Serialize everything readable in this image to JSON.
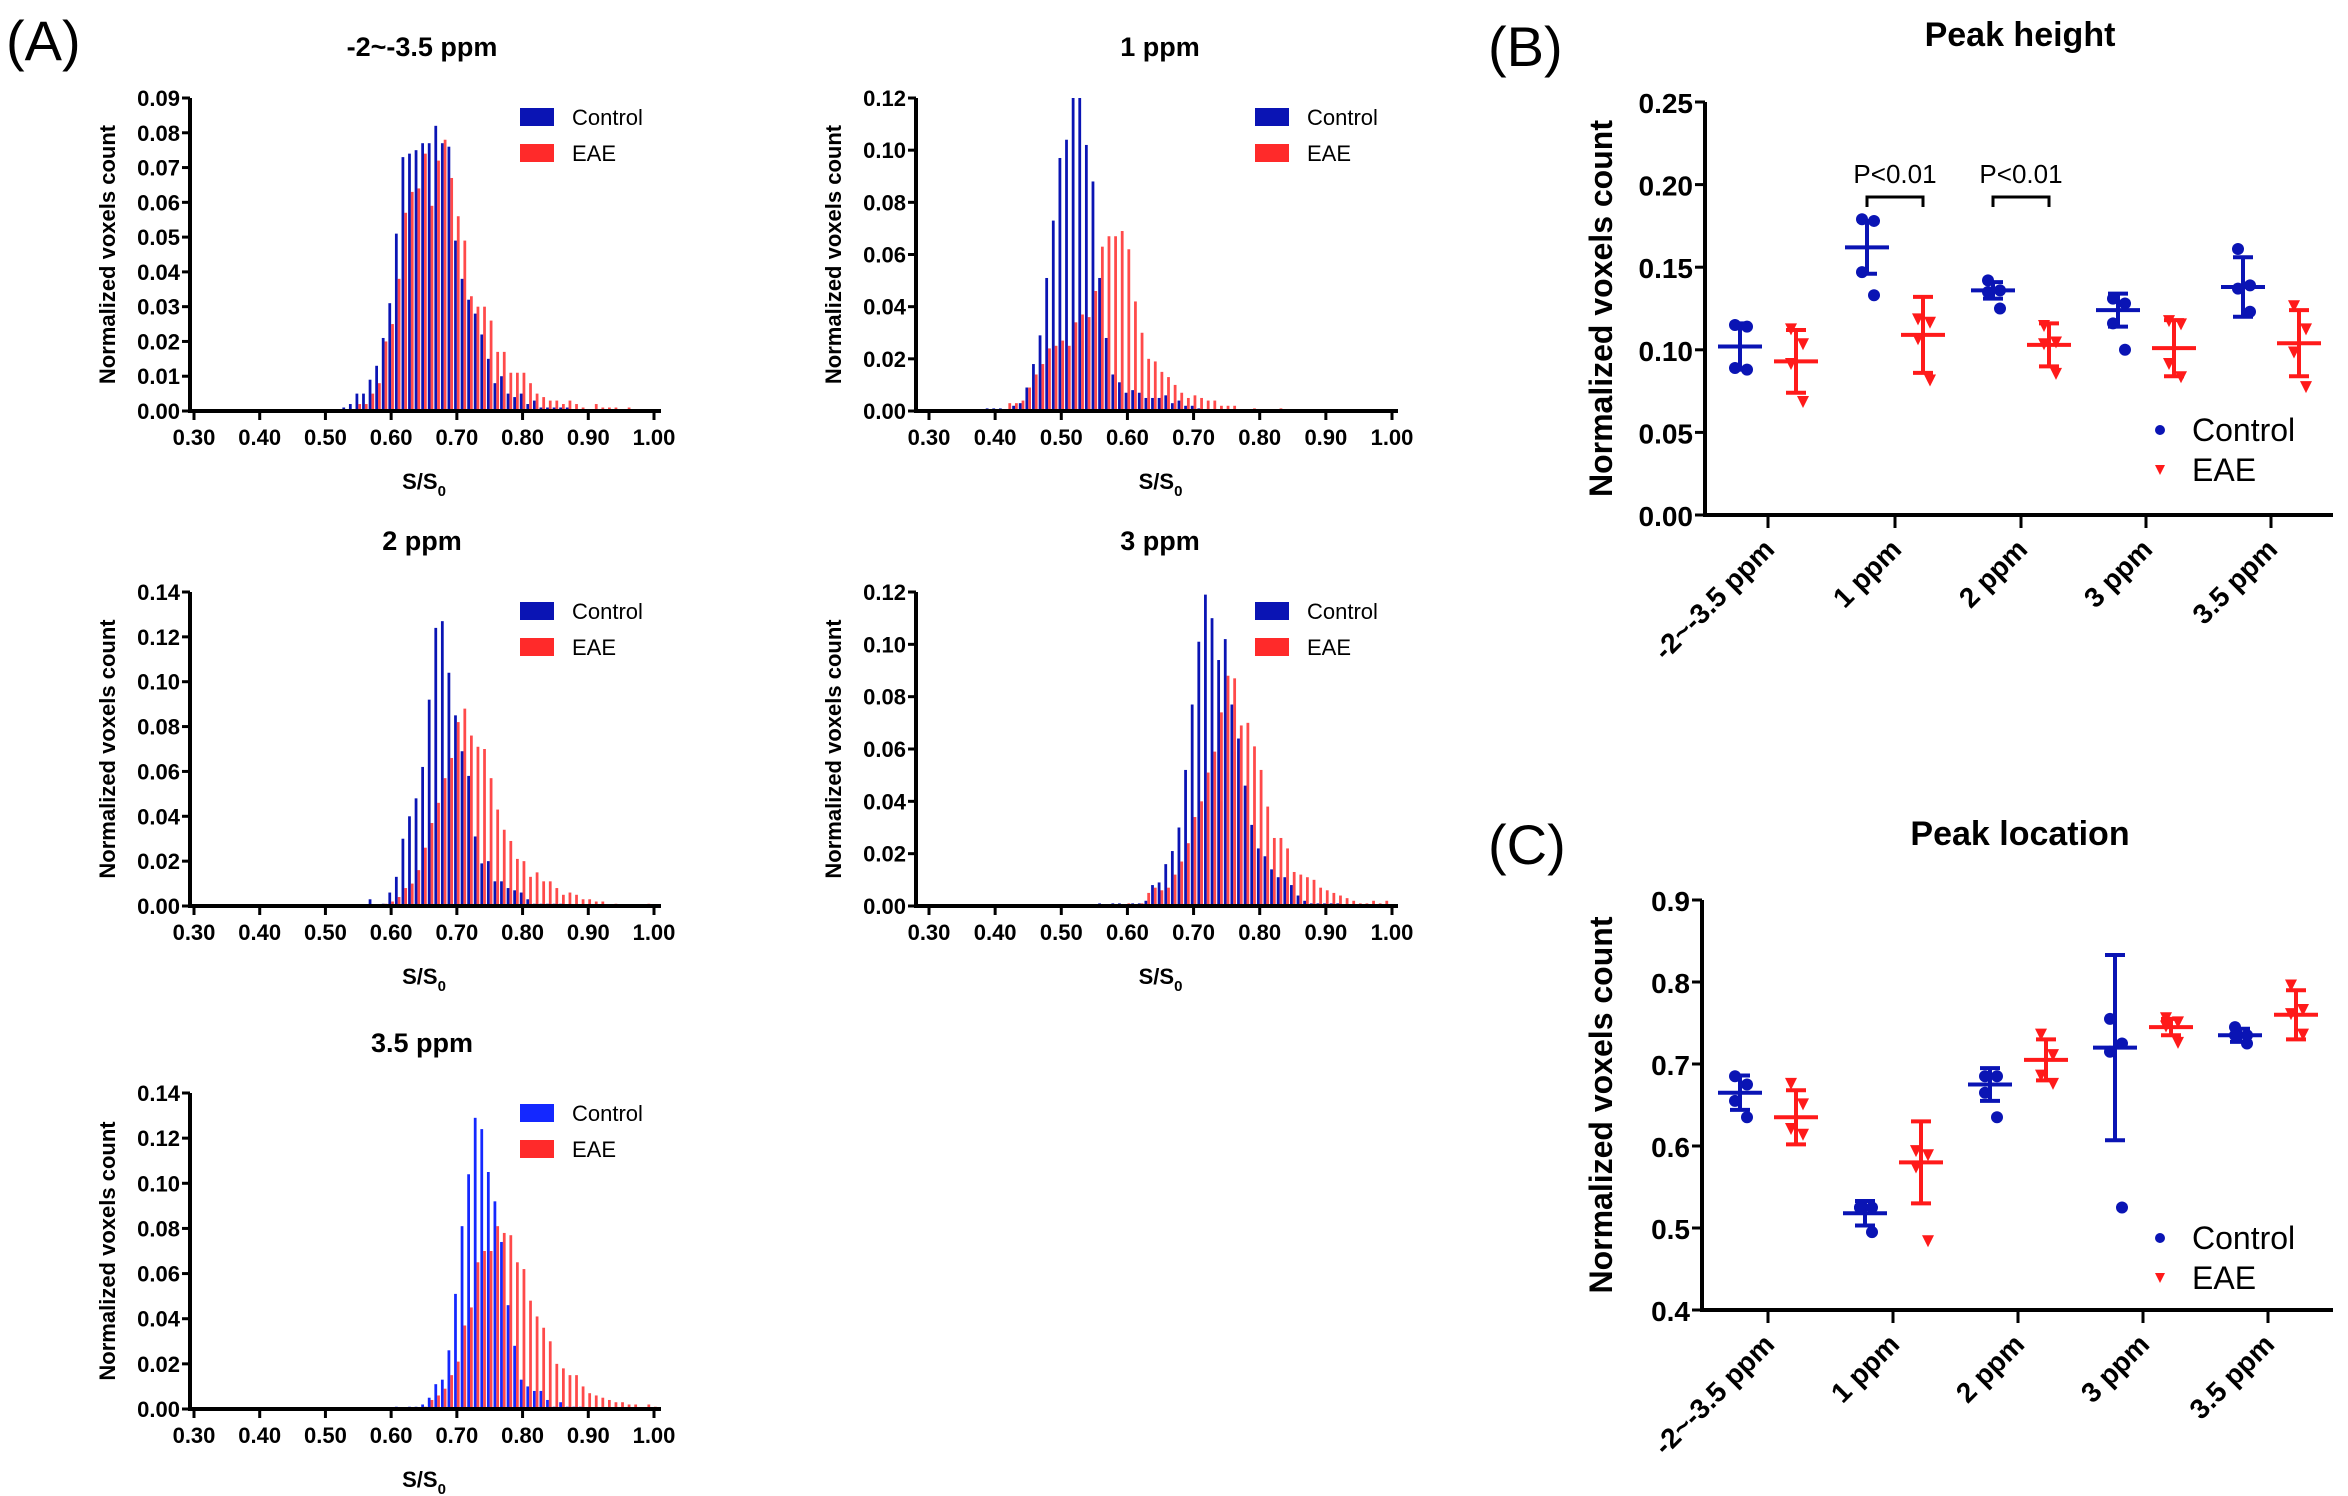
{
  "panel_labels": {
    "A": "(A)",
    "B": "(B)",
    "C": "(C)"
  },
  "colors": {
    "control": "#0a14b4",
    "control_bright": "#1428ff",
    "eae": "#ff2a2a",
    "eae_marker": "#ff1a1a",
    "axis": "#000000"
  },
  "chart_data": [
    {
      "id": "hist-m2-3.5",
      "type": "bar",
      "title": "-2~-3.5 ppm",
      "xlabel": "S/S0",
      "ylabel": "Normalized voxels count",
      "xlim": [
        0.3,
        1.0
      ],
      "ylim": [
        0,
        0.09
      ],
      "yticks": [
        "0.00",
        "0.01",
        "0.02",
        "0.03",
        "0.04",
        "0.05",
        "0.06",
        "0.07",
        "0.08",
        "0.09"
      ],
      "xticks": [
        "0.30",
        "0.40",
        "0.50",
        "0.60",
        "0.70",
        "0.80",
        "0.90",
        "1.00"
      ],
      "legend": [
        "Control",
        "EAE"
      ],
      "legend_position": "top-right",
      "bin_start": 0.53,
      "bin_width": 0.01,
      "series": [
        {
          "name": "Control",
          "values": [
            0.001,
            0.002,
            0.005,
            0.005,
            0.009,
            0.013,
            0.021,
            0.031,
            0.051,
            0.073,
            0.074,
            0.075,
            0.077,
            0.077,
            0.082,
            0.077,
            0.076,
            0.049,
            0.038,
            0.032,
            0.028,
            0.022,
            0.015,
            0.008,
            0.01,
            0.005,
            0.004,
            0.005,
            0.002,
            0.003,
            0.001,
            0.001,
            0.001,
            0.001,
            0.001,
            0.0,
            0.0,
            0.0,
            0.0,
            0.0,
            0.0,
            0.0,
            0.0,
            0.0
          ]
        },
        {
          "name": "EAE",
          "values": [
            0.0,
            0.0,
            0.002,
            0.002,
            0.005,
            0.008,
            0.02,
            0.025,
            0.038,
            0.057,
            0.063,
            0.064,
            0.074,
            0.059,
            0.072,
            0.078,
            0.067,
            0.056,
            0.049,
            0.033,
            0.03,
            0.03,
            0.026,
            0.017,
            0.017,
            0.011,
            0.011,
            0.011,
            0.008,
            0.005,
            0.004,
            0.003,
            0.003,
            0.002,
            0.003,
            0.002,
            0.001,
            0.0,
            0.002,
            0.001,
            0.001,
            0.001,
            0.0,
            0.001
          ]
        }
      ]
    },
    {
      "id": "hist-1",
      "type": "bar",
      "title": "1 ppm",
      "xlabel": "S/S0",
      "ylabel": "Normalized voxels count",
      "xlim": [
        0.3,
        1.0
      ],
      "ylim": [
        0,
        0.12
      ],
      "yticks": [
        "0.00",
        "0.02",
        "0.04",
        "0.06",
        "0.08",
        "0.10",
        "0.12"
      ],
      "xticks": [
        "0.30",
        "0.40",
        "0.50",
        "0.60",
        "0.70",
        "0.80",
        "0.90",
        "1.00"
      ],
      "legend": [
        "Control",
        "EAE"
      ],
      "legend_position": "top-right",
      "bin_start": 0.39,
      "bin_width": 0.01,
      "series": [
        {
          "name": "Control",
          "values": [
            0.001,
            0.001,
            0.001,
            0.0,
            0.002,
            0.003,
            0.009,
            0.018,
            0.029,
            0.051,
            0.073,
            0.097,
            0.104,
            0.12,
            0.12,
            0.102,
            0.088,
            0.051,
            0.028,
            0.014,
            0.011,
            0.007,
            0.008,
            0.007,
            0.005,
            0.005,
            0.005,
            0.006,
            0.003,
            0.004,
            0.002,
            0.002,
            0.001,
            0.0,
            0.0,
            0.0,
            0.0,
            0.0,
            0.0,
            0.0,
            0.0,
            0.0,
            0.0,
            0.0,
            0.0
          ]
        },
        {
          "name": "EAE",
          "values": [
            0.0,
            0.0,
            0.0,
            0.003,
            0.003,
            0.004,
            0.009,
            0.014,
            0.018,
            0.024,
            0.025,
            0.027,
            0.025,
            0.034,
            0.037,
            0.036,
            0.046,
            0.063,
            0.067,
            0.067,
            0.069,
            0.062,
            0.042,
            0.03,
            0.02,
            0.019,
            0.015,
            0.013,
            0.01,
            0.007,
            0.005,
            0.006,
            0.005,
            0.004,
            0.004,
            0.002,
            0.002,
            0.002,
            0.0,
            0.0,
            0.001,
            0.0,
            0.0,
            0.0,
            0.001
          ]
        }
      ]
    },
    {
      "id": "hist-2",
      "type": "bar",
      "title": "2 ppm",
      "xlabel": "S/S0",
      "ylabel": "Normalized voxels count",
      "xlim": [
        0.3,
        1.0
      ],
      "ylim": [
        0,
        0.14
      ],
      "yticks": [
        "0.00",
        "0.02",
        "0.04",
        "0.06",
        "0.08",
        "0.10",
        "0.12",
        "0.14"
      ],
      "xticks": [
        "0.30",
        "0.40",
        "0.50",
        "0.60",
        "0.70",
        "0.80",
        "0.90",
        "1.00"
      ],
      "legend": [
        "Control",
        "EAE"
      ],
      "legend_position": "top-right",
      "bin_start": 0.57,
      "bin_width": 0.01,
      "series": [
        {
          "name": "Control",
          "values": [
            0.003,
            0.0,
            0.001,
            0.006,
            0.013,
            0.03,
            0.04,
            0.048,
            0.062,
            0.092,
            0.124,
            0.127,
            0.104,
            0.085,
            0.069,
            0.058,
            0.031,
            0.019,
            0.02,
            0.011,
            0.011,
            0.008,
            0.007,
            0.006,
            0.003,
            0.001,
            0.001,
            0.001,
            0.001,
            0.001,
            0.0,
            0.0,
            0.0,
            0.0,
            0.0,
            0.0,
            0.0,
            0.0,
            0.0,
            0.0,
            0.0,
            0.0,
            0.0
          ]
        },
        {
          "name": "EAE",
          "values": [
            0.0,
            0.0,
            0.001,
            0.002,
            0.004,
            0.008,
            0.01,
            0.016,
            0.026,
            0.037,
            0.046,
            0.057,
            0.066,
            0.082,
            0.088,
            0.076,
            0.071,
            0.07,
            0.057,
            0.043,
            0.034,
            0.029,
            0.021,
            0.02,
            0.013,
            0.015,
            0.011,
            0.011,
            0.008,
            0.005,
            0.006,
            0.005,
            0.003,
            0.003,
            0.002,
            0.002,
            0.0,
            0.001,
            0.0,
            0.0,
            0.0,
            0.0,
            0.001
          ]
        }
      ]
    },
    {
      "id": "hist-3",
      "type": "bar",
      "title": "3 ppm",
      "xlabel": "S/S0",
      "ylabel": "Normalized voxels count",
      "xlim": [
        0.3,
        1.0
      ],
      "ylim": [
        0,
        0.12
      ],
      "yticks": [
        "0.00",
        "0.02",
        "0.04",
        "0.06",
        "0.08",
        "0.10",
        "0.12"
      ],
      "xticks": [
        "0.30",
        "0.40",
        "0.50",
        "0.60",
        "0.70",
        "0.80",
        "0.90",
        "1.00"
      ],
      "legend": [
        "Control",
        "EAE"
      ],
      "legend_position": "top-right",
      "bin_start": 0.56,
      "bin_width": 0.01,
      "series": [
        {
          "name": "Control",
          "values": [
            0.001,
            0.0,
            0.001,
            0.001,
            0.0,
            0.001,
            0.001,
            0.002,
            0.008,
            0.009,
            0.016,
            0.021,
            0.03,
            0.052,
            0.077,
            0.101,
            0.119,
            0.11,
            0.094,
            0.102,
            0.077,
            0.064,
            0.046,
            0.031,
            0.022,
            0.019,
            0.014,
            0.011,
            0.011,
            0.008,
            0.004,
            0.002,
            0.001,
            0.001,
            0.001,
            0.001,
            0.001,
            0.0,
            0.0,
            0.0,
            0.0,
            0.0,
            0.0,
            0.0
          ]
        },
        {
          "name": "EAE",
          "values": [
            0.0,
            0.0,
            0.0,
            0.0,
            0.001,
            0.0,
            0.001,
            0.005,
            0.007,
            0.006,
            0.007,
            0.012,
            0.017,
            0.024,
            0.034,
            0.04,
            0.051,
            0.059,
            0.074,
            0.088,
            0.087,
            0.069,
            0.07,
            0.061,
            0.052,
            0.038,
            0.026,
            0.026,
            0.022,
            0.013,
            0.012,
            0.011,
            0.01,
            0.007,
            0.006,
            0.005,
            0.004,
            0.003,
            0.002,
            0.001,
            0.001,
            0.002,
            0.001,
            0.002
          ]
        }
      ]
    },
    {
      "id": "hist-3.5",
      "type": "bar",
      "title": "3.5 ppm",
      "xlabel": "S/S0",
      "ylabel": "Normalized voxels count",
      "xlim": [
        0.3,
        1.0
      ],
      "ylim": [
        0,
        0.14
      ],
      "yticks": [
        "0.00",
        "0.02",
        "0.04",
        "0.06",
        "0.08",
        "0.10",
        "0.12",
        "0.14"
      ],
      "xticks": [
        "0.30",
        "0.40",
        "0.50",
        "0.60",
        "0.70",
        "0.80",
        "0.90",
        "1.00"
      ],
      "legend": [
        "Control",
        "EAE"
      ],
      "legend_position": "top-right",
      "bin_start": 0.61,
      "bin_width": 0.01,
      "series": [
        {
          "name": "Control",
          "values": [
            0.001,
            0.0,
            0.001,
            0.001,
            0.002,
            0.005,
            0.011,
            0.013,
            0.026,
            0.051,
            0.081,
            0.104,
            0.129,
            0.124,
            0.105,
            0.092,
            0.074,
            0.046,
            0.028,
            0.013,
            0.01,
            0.008,
            0.008,
            0.004,
            0.001,
            0.003,
            0.001,
            0.001,
            0.001,
            0.0,
            0.0,
            0.0,
            0.0,
            0.0,
            0.0,
            0.0,
            0.0,
            0.0,
            0.0,
            0.0
          ]
        },
        {
          "name": "EAE",
          "values": [
            0.0,
            0.0,
            0.0,
            0.0,
            0.001,
            0.004,
            0.006,
            0.009,
            0.015,
            0.021,
            0.037,
            0.045,
            0.065,
            0.07,
            0.07,
            0.081,
            0.078,
            0.077,
            0.065,
            0.062,
            0.048,
            0.041,
            0.036,
            0.03,
            0.02,
            0.018,
            0.015,
            0.015,
            0.01,
            0.007,
            0.006,
            0.005,
            0.004,
            0.003,
            0.003,
            0.002,
            0.002,
            0.0,
            0.002,
            0.001
          ]
        }
      ]
    },
    {
      "id": "peak-height",
      "type": "scatter",
      "title": "Peak height",
      "xlabel": "",
      "ylabel": "Normalized voxels count",
      "categories": [
        "-2~-3.5 ppm",
        "1 ppm",
        "2 ppm",
        "3 ppm",
        "3.5 ppm"
      ],
      "ylim": [
        0,
        0.25
      ],
      "yticks": [
        "0.00",
        "0.05",
        "0.10",
        "0.15",
        "0.20",
        "0.25"
      ],
      "legend": [
        "Control",
        "EAE"
      ],
      "legend_position": "bottom-right",
      "series": [
        {
          "name": "Control",
          "marker": "circle",
          "points": [
            [
              0.115,
              0.114,
              0.089,
              0.088
            ],
            [
              0.179,
              0.178,
              0.147,
              0.133
            ],
            [
              0.142,
              0.136,
              0.135,
              0.125
            ],
            [
              0.131,
              0.128,
              0.116,
              0.1
            ],
            [
              0.161,
              0.139,
              0.137,
              0.123
            ]
          ],
          "mean": [
            0.102,
            0.162,
            0.136,
            0.124,
            0.138
          ],
          "sd": [
            0.014,
            0.016,
            0.005,
            0.01,
            0.018
          ]
        },
        {
          "name": "EAE",
          "marker": "triangle-down",
          "points": [
            [
              0.113,
              0.104,
              0.092,
              0.069
            ],
            [
              0.119,
              0.117,
              0.107,
              0.082
            ],
            [
              0.115,
              0.105,
              0.104,
              0.086
            ],
            [
              0.118,
              0.116,
              0.092,
              0.084
            ],
            [
              0.127,
              0.113,
              0.099,
              0.078
            ]
          ],
          "mean": [
            0.093,
            0.109,
            0.103,
            0.101,
            0.104
          ],
          "sd": [
            0.019,
            0.023,
            0.013,
            0.017,
            0.02
          ]
        }
      ],
      "annotations": [
        {
          "text": "P<0.01",
          "between_category": 1
        },
        {
          "text": "P<0.01",
          "between_category": 2
        }
      ]
    },
    {
      "id": "peak-location",
      "type": "scatter",
      "title": "Peak location",
      "xlabel": "",
      "ylabel": "Normalized voxels count",
      "categories": [
        "-2~-3.5 ppm",
        "1 ppm",
        "2 ppm",
        "3 ppm",
        "3.5 ppm"
      ],
      "ylim": [
        0.4,
        0.9
      ],
      "yticks": [
        "0.4",
        "0.5",
        "0.6",
        "0.7",
        "0.8",
        "0.9"
      ],
      "legend": [
        "Control",
        "EAE"
      ],
      "legend_position": "bottom-right",
      "series": [
        {
          "name": "Control",
          "marker": "circle",
          "points": [
            [
              0.685,
              0.675,
              0.655,
              0.635
            ],
            [
              0.525,
              0.525,
              0.525,
              0.495
            ],
            [
              0.685,
              0.685,
              0.665,
              0.635
            ],
            [
              0.755,
              0.725,
              0.715,
              0.525
            ],
            [
              0.745,
              0.735,
              0.735,
              0.725
            ]
          ],
          "mean": [
            0.665,
            0.518,
            0.675,
            0.72,
            0.735
          ],
          "sd": [
            0.021,
            0.015,
            0.02,
            0.113,
            0.008
          ]
        },
        {
          "name": "EAE",
          "marker": "triangle-down",
          "points": [
            [
              0.677,
              0.652,
              0.622,
              0.615
            ],
            [
              0.595,
              0.59,
              0.575,
              0.485
            ],
            [
              0.737,
              0.712,
              0.687,
              0.677
            ],
            [
              0.757,
              0.752,
              0.747,
              0.727
            ],
            [
              0.797,
              0.767,
              0.762,
              0.737
            ]
          ],
          "mean": [
            0.635,
            0.58,
            0.705,
            0.745,
            0.76
          ],
          "sd": [
            0.033,
            0.05,
            0.025,
            0.01,
            0.03
          ]
        }
      ]
    }
  ]
}
